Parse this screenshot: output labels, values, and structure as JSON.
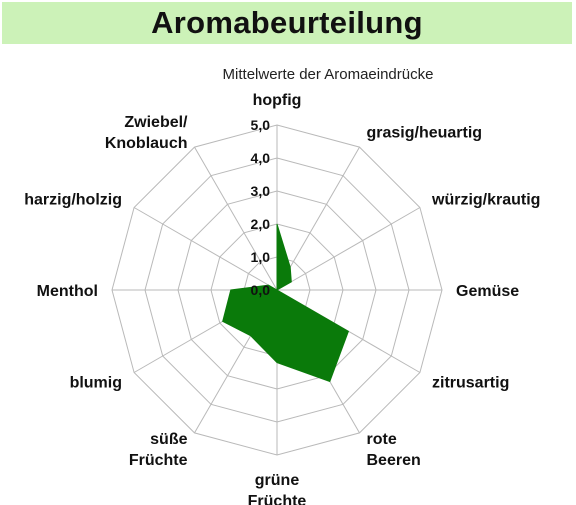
{
  "banner": {
    "title": "Aromabeurteilung"
  },
  "chart_data": {
    "type": "radar",
    "subtitle": "Mittelwerte der Aromaeindrücke",
    "categories": [
      "hopfig",
      "grasig/heuartig",
      "würzig/krautig",
      "Gemüse",
      "zitrusartig",
      "rote Beeren",
      "grüne Früchte",
      "süße Früchte",
      "blumig",
      "Menthol",
      "harzig/holzig",
      "Zwiebel/ Knoblauch"
    ],
    "series": [
      {
        "values": [
          2.0,
          0.8,
          0.5,
          0.0,
          2.5,
          3.2,
          2.2,
          1.6,
          1.9,
          1.4,
          0.3,
          0.0
        ]
      }
    ],
    "rlim": [
      0,
      5
    ],
    "ticks": [
      "0,0",
      "1,0",
      "2,0",
      "3,0",
      "4,0",
      "5,0"
    ],
    "grid": true,
    "colors": {
      "fill": "#0a7a0a",
      "grid": "#b9b9b9"
    }
  }
}
